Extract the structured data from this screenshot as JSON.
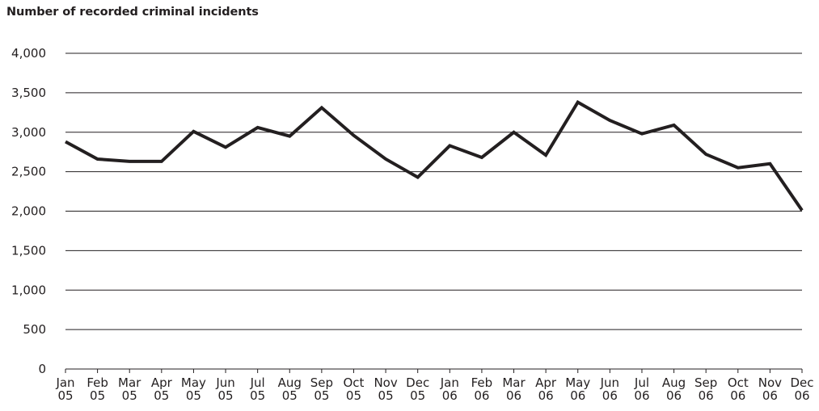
{
  "chart_data": {
    "type": "line",
    "title": "Number of recorded criminal incidents",
    "xlabel": "",
    "ylabel": "",
    "categories": [
      [
        "Jan",
        "05"
      ],
      [
        "Feb",
        "05"
      ],
      [
        "Mar",
        "05"
      ],
      [
        "Apr",
        "05"
      ],
      [
        "May",
        "05"
      ],
      [
        "Jun",
        "05"
      ],
      [
        "Jul",
        "05"
      ],
      [
        "Aug",
        "05"
      ],
      [
        "Sep",
        "05"
      ],
      [
        "Oct",
        "05"
      ],
      [
        "Nov",
        "05"
      ],
      [
        "Dec",
        "05"
      ],
      [
        "Jan",
        "06"
      ],
      [
        "Feb",
        "06"
      ],
      [
        "Mar",
        "06"
      ],
      [
        "Apr",
        "06"
      ],
      [
        "May",
        "06"
      ],
      [
        "Jun",
        "06"
      ],
      [
        "Jul",
        "06"
      ],
      [
        "Aug",
        "06"
      ],
      [
        "Sep",
        "06"
      ],
      [
        "Oct",
        "06"
      ],
      [
        "Nov",
        "06"
      ],
      [
        "Dec",
        "06"
      ]
    ],
    "series": [
      {
        "values": [
          2880,
          2660,
          2630,
          2630,
          3010,
          2810,
          3060,
          2950,
          3310,
          2960,
          2660,
          2430,
          2830,
          2680,
          3000,
          2710,
          3380,
          3150,
          2980,
          3090,
          2720,
          2550,
          2600,
          2010
        ]
      }
    ],
    "ylim": [
      0,
      4000
    ],
    "yticks": [
      0,
      500,
      1000,
      1500,
      2000,
      2500,
      3000,
      3500,
      4000
    ],
    "ytick_labels": [
      "0",
      "500",
      "1,000",
      "1,500",
      "2,000",
      "2,500",
      "3,000",
      "3,500",
      "4,000"
    ],
    "grid": true,
    "legend": "none",
    "line_color": "#231f20",
    "grid_color": "#231f20"
  }
}
